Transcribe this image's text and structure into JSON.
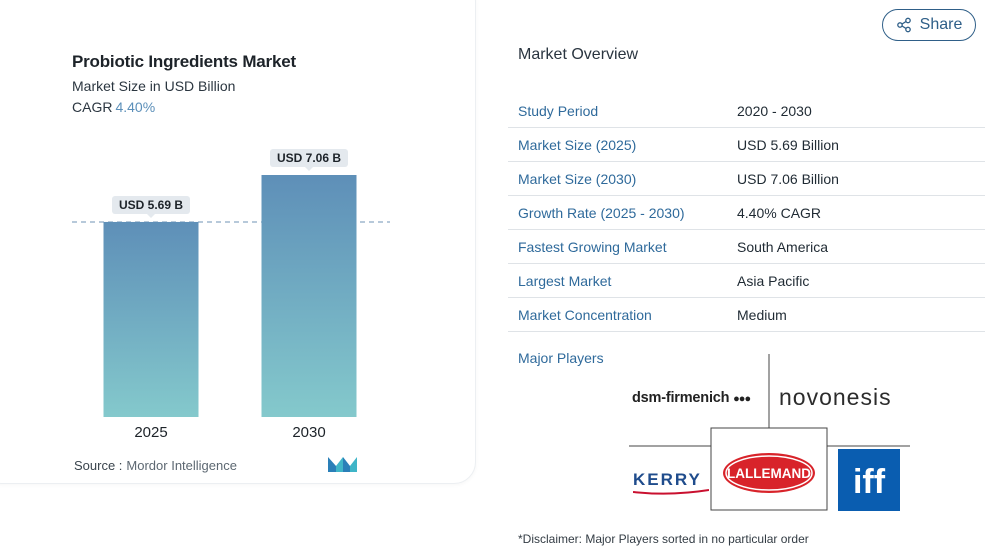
{
  "chart": {
    "title": "Probiotic Ingredients Market",
    "subtitle": "Market Size in USD Billion",
    "cagr_label": "CAGR",
    "cagr_value": "4.40%",
    "source_label": "Source :",
    "source_value": "Mordor Intelligence"
  },
  "chart_data": {
    "type": "bar",
    "title": "Probiotic Ingredients Market",
    "categories": [
      "2025",
      "2030"
    ],
    "values": [
      5.69,
      7.06
    ],
    "data_labels": [
      "USD 5.69 B",
      "USD 7.06 B"
    ],
    "ylabel": "",
    "xlabel": "",
    "reference_line": 5.69,
    "ylim": [
      0,
      7.06
    ],
    "bar_gradient": [
      "#5e8fb8",
      "#84c9cc"
    ],
    "grid": false
  },
  "share": {
    "label": "Share",
    "icon": "share-icon"
  },
  "overview": {
    "heading": "Market Overview",
    "rows": [
      {
        "label": "Study Period",
        "value": "2020 - 2030"
      },
      {
        "label": "Market Size (2025)",
        "value": "USD 5.69 Billion"
      },
      {
        "label": "Market Size (2030)",
        "value": "USD 7.06 Billion"
      },
      {
        "label": "Growth Rate (2025 - 2030)",
        "value": "4.40% CAGR"
      },
      {
        "label": "Fastest Growing Market",
        "value": "South America"
      },
      {
        "label": "Largest Market",
        "value": "Asia Pacific"
      },
      {
        "label": "Market Concentration",
        "value": "Medium"
      }
    ],
    "players_label": "Major Players",
    "players": {
      "dsm": "dsm-firmenich",
      "novonesis": "novonesis",
      "kerry": "KERRY",
      "lallemand": "LALLEMAND",
      "iff": "iff"
    },
    "disclaimer": "*Disclaimer: Major Players sorted in no particular order"
  },
  "colors": {
    "accent": "#2f6a9b",
    "bar_top": "#5e8fb8",
    "bar_bottom": "#84c9cc",
    "lallemand_red": "#d8232a",
    "iff_blue": "#0a5db0"
  }
}
